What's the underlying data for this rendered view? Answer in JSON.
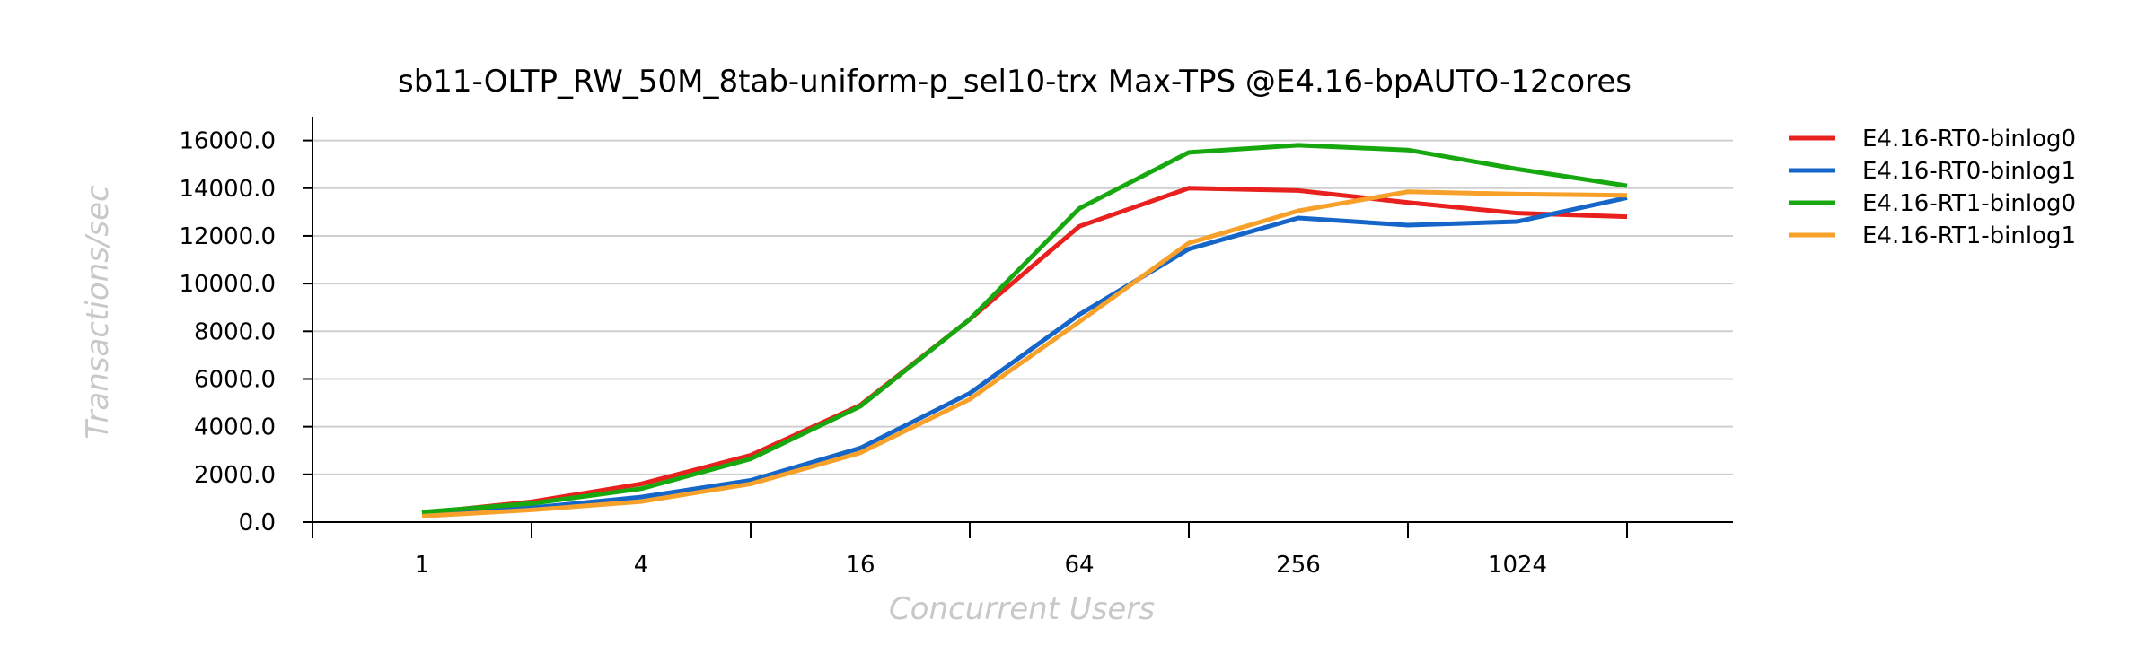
{
  "chart_data": {
    "type": "line",
    "title": "sb11-OLTP_RW_50M_8tab-uniform-p_sel10-trx Max-TPS @E4.16-bpAUTO-12cores",
    "xlabel": "Concurrent Users",
    "ylabel": "Transactions/sec",
    "x": [
      1,
      2,
      4,
      8,
      16,
      32,
      64,
      128,
      256,
      512,
      1024,
      2048
    ],
    "x_scale": "log2",
    "xtick_labels": [
      "1",
      "4",
      "16",
      "64",
      "256",
      "1024"
    ],
    "xtick_values": [
      1,
      4,
      16,
      64,
      256,
      1024
    ],
    "ytick_labels": [
      "0.0",
      "2000.0",
      "4000.0",
      "6000.0",
      "8000.0",
      "10000.0",
      "12000.0",
      "14000.0",
      "16000.0"
    ],
    "ylim": [
      0,
      17000
    ],
    "grid": "horizontal",
    "legend_position": "right",
    "series": [
      {
        "name": "E4.16-RT0-binlog0",
        "color": "#e8201e",
        "values": [
          380,
          850,
          1600,
          2800,
          4900,
          8500,
          12400,
          14000,
          13900,
          13400,
          12950,
          12800
        ]
      },
      {
        "name": "E4.16-RT0-binlog1",
        "color": "#1566c8",
        "values": [
          270,
          600,
          1050,
          1750,
          3100,
          5400,
          8700,
          11450,
          12750,
          12450,
          12600,
          13600
        ]
      },
      {
        "name": "E4.16-RT1-binlog0",
        "color": "#17a80f",
        "values": [
          420,
          780,
          1400,
          2650,
          4850,
          8500,
          13150,
          15500,
          15800,
          15600,
          14800,
          14100
        ]
      },
      {
        "name": "E4.16-RT1-binlog1",
        "color": "#f7a12b",
        "values": [
          250,
          510,
          860,
          1600,
          2900,
          5150,
          8400,
          11700,
          13050,
          13850,
          13750,
          13700
        ]
      }
    ]
  }
}
